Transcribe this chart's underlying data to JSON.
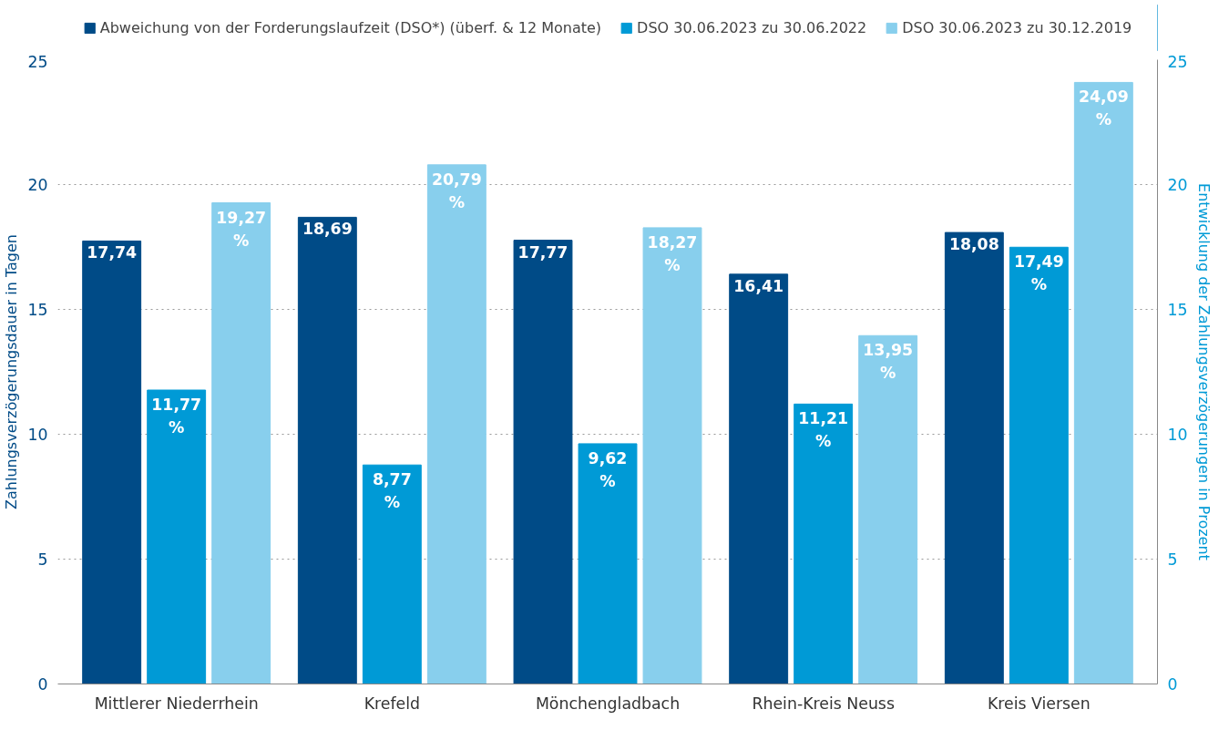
{
  "chart_data": {
    "type": "bar",
    "categories": [
      "Mittlerer Niederrhein",
      "Krefeld",
      "Mönchengladbach",
      "Rhein-Kreis Neuss",
      "Kreis Viersen"
    ],
    "ylabel": "Zahlungsverzögerungsdauer in Tagen",
    "y2label": "Entwicklung der Zahlungsverzögerungen in Prozent",
    "ylim": [
      0,
      25
    ],
    "yticks": [
      0,
      5,
      10,
      15,
      20,
      25
    ],
    "y2lim": [
      0,
      25
    ],
    "y2ticks": [
      0,
      5,
      10,
      15,
      20,
      25
    ],
    "grid": "y",
    "legend": "top",
    "series": [
      {
        "name": "Abweichung von der Forderungslaufzeit (DSO*) (überf. & 12 Monate)",
        "color": "#004b87",
        "values": [
          17.74,
          18.69,
          17.77,
          16.41,
          18.08
        ],
        "value_labels": [
          "17,74",
          "18,69",
          "17,77",
          "16,41",
          "18,08"
        ]
      },
      {
        "name": "DSO 30.06.2023 zu 30.06.2022",
        "color": "#009ad6",
        "axis": "y2",
        "values": [
          11.77,
          8.77,
          9.62,
          11.21,
          17.49
        ],
        "value_labels": [
          "11,77 %",
          "8,77 %",
          "9,62 %",
          "11,21 %",
          "17,49 %"
        ]
      },
      {
        "name": "DSO 30.06.2023 zu 30.12.2019",
        "color": "#88cfed",
        "axis": "y2",
        "values": [
          19.27,
          20.79,
          18.27,
          13.95,
          24.09
        ],
        "value_labels": [
          "19,27 %",
          "20,79 %",
          "18,27 %",
          "13,95 %",
          "24,09 %"
        ]
      }
    ]
  }
}
